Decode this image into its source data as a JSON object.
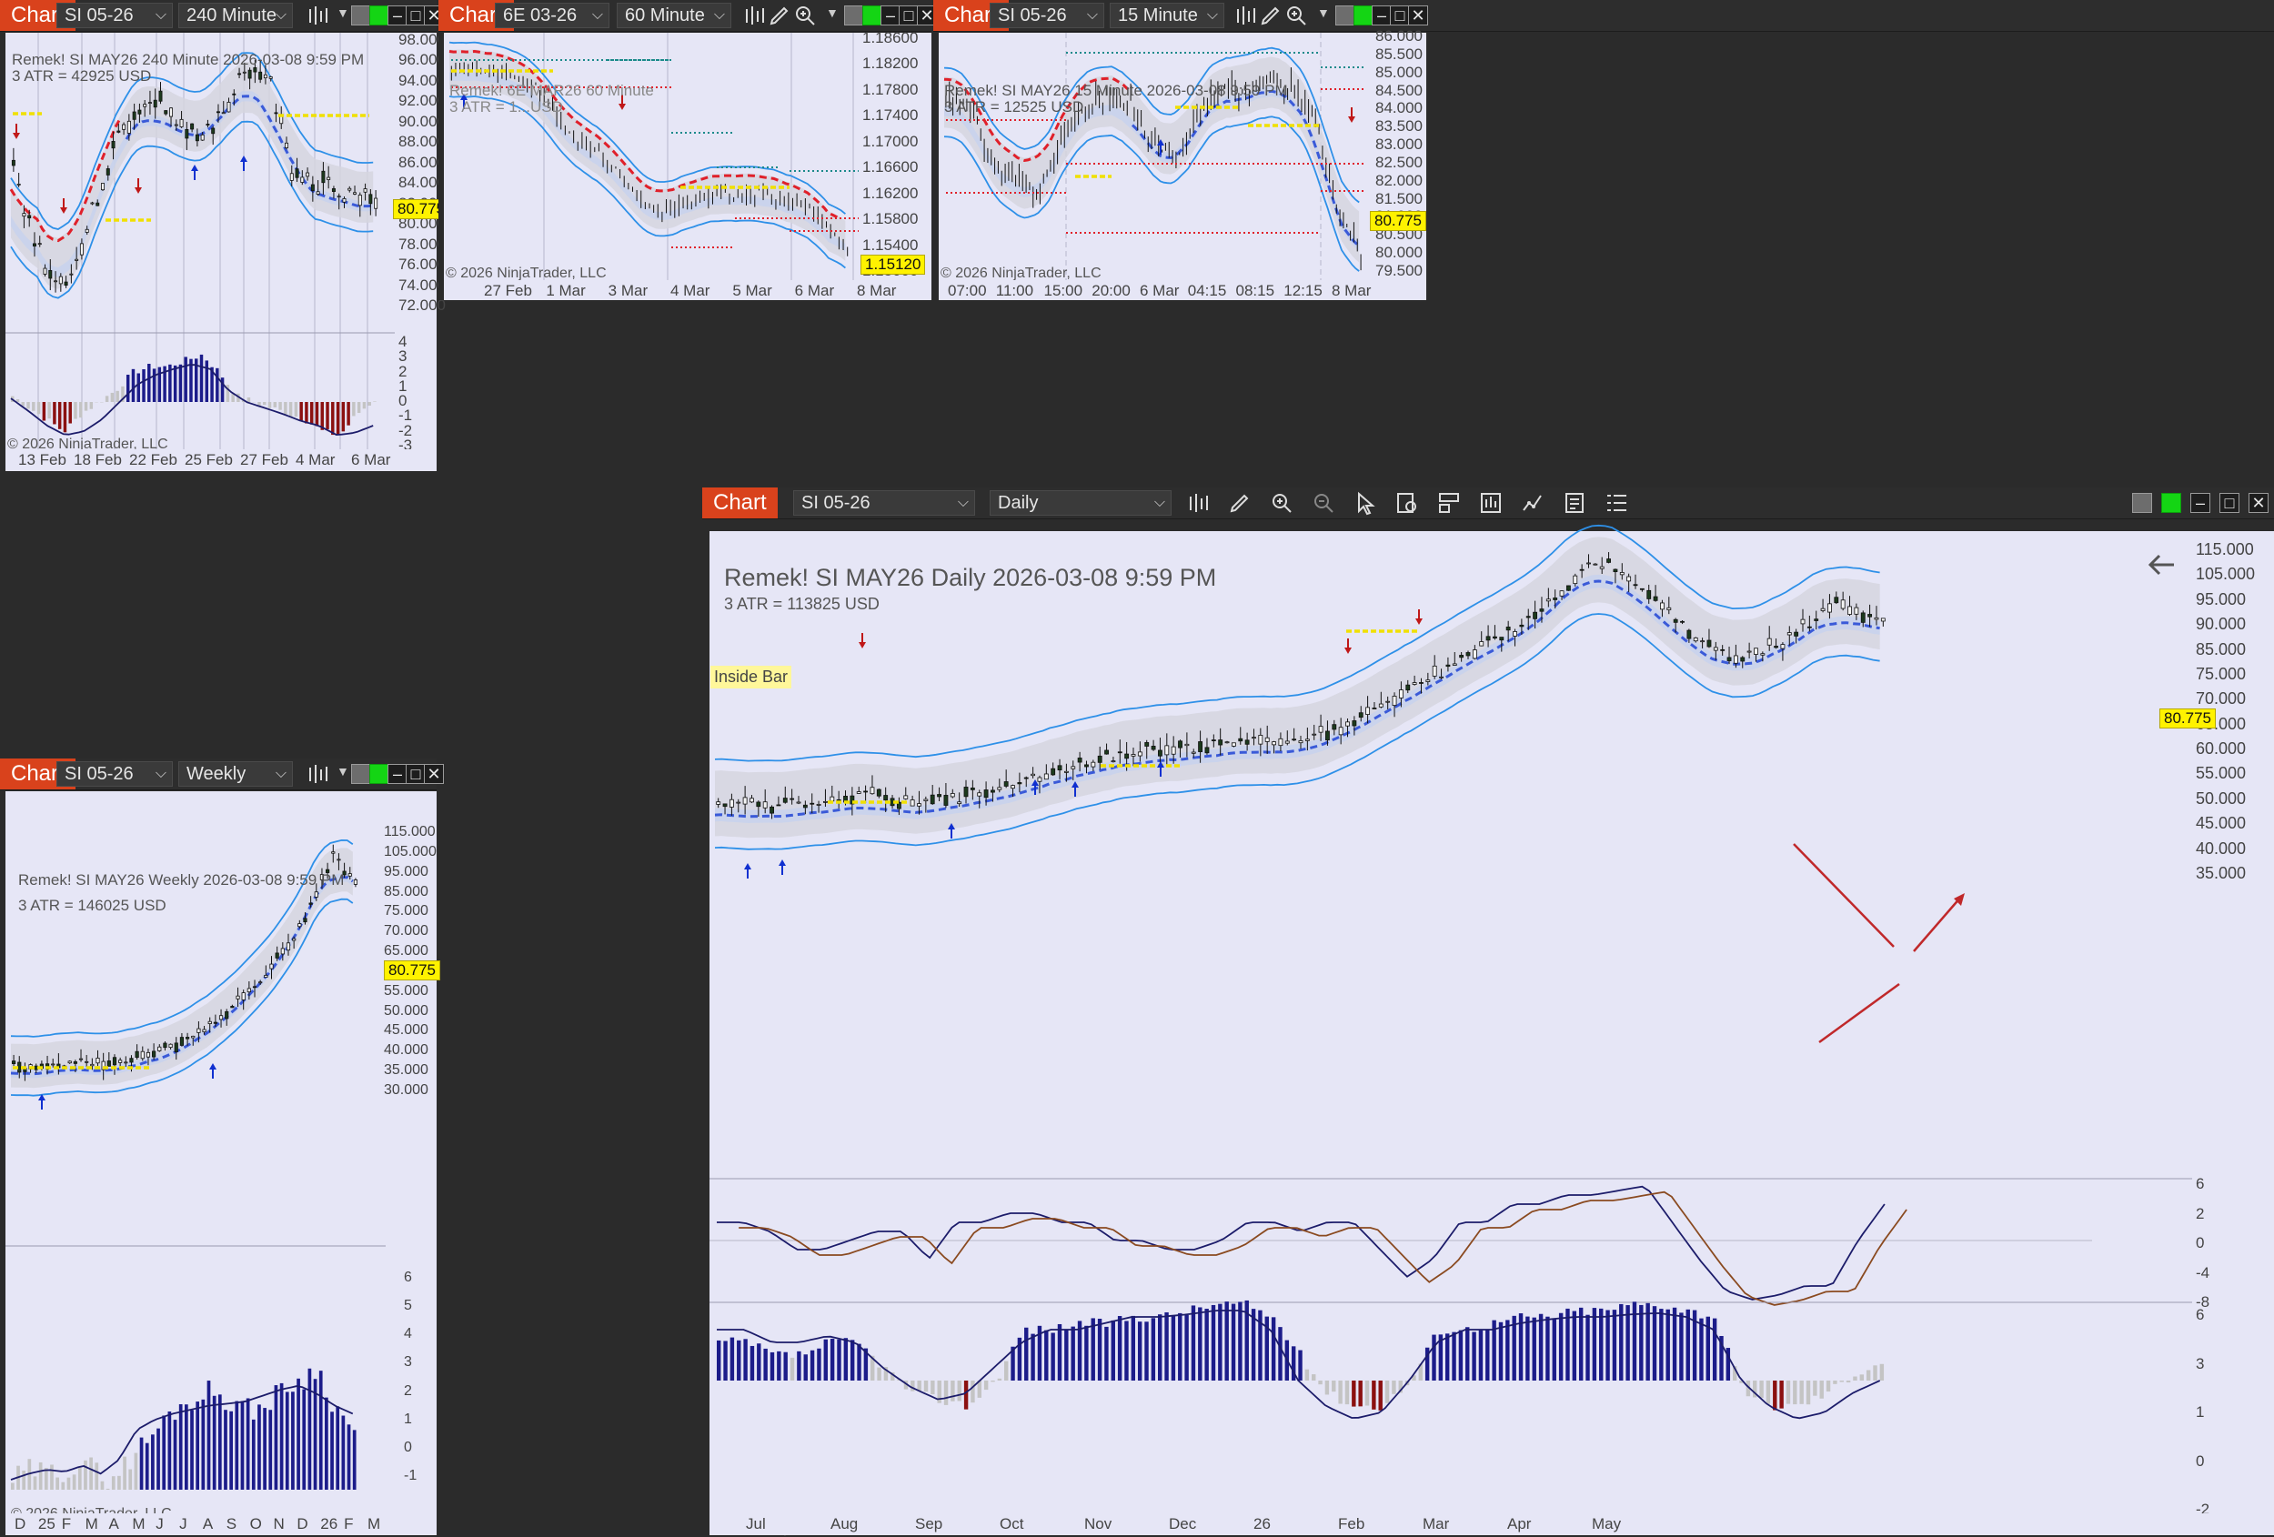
{
  "common": {
    "title": "Chart",
    "copyright": "© 2026 NinjaTrader, LLC"
  },
  "charts": {
    "c240": {
      "instrument": "SI 05-26",
      "period": "240 Minute",
      "header": "Remek!  SI MAY26  240 Minute  2026-03-08 9:59 PM",
      "atr": "3 ATR = 42925 USD",
      "last_price": "80.775",
      "price_ticks": [
        "98.000",
        "96.000",
        "94.000",
        "92.000",
        "90.000",
        "88.000",
        "86.000",
        "84.000",
        "82.000",
        "80.000",
        "78.000",
        "76.000",
        "74.000",
        "72.000"
      ],
      "osc_ticks": [
        "4",
        "3",
        "2",
        "1",
        "0",
        "-1",
        "-2",
        "-3"
      ],
      "x_labels": [
        "13 Feb",
        "18 Feb",
        "22 Feb",
        "25 Feb",
        "27 Feb",
        "4 Mar",
        "6 Mar"
      ]
    },
    "c60": {
      "instrument": "6E 03-26",
      "period": "60 Minute",
      "header": "Remek!  6E MAR26  60 Minute",
      "atr": "3 ATR = 1...USD",
      "last_price": "1.15120",
      "price_ticks": [
        "1.18600",
        "1.18200",
        "1.17800",
        "1.17400",
        "1.17000",
        "1.16600",
        "1.16200",
        "1.15800",
        "1.15400",
        "1.15000"
      ],
      "x_labels": [
        "27 Feb",
        "1 Mar",
        "3 Mar",
        "4 Mar",
        "5 Mar",
        "6 Mar",
        "8 Mar"
      ]
    },
    "c15": {
      "instrument": "SI 05-26",
      "period": "15 Minute",
      "header": "Remek!  SI MAY26  15 Minute  2026-03-08 9:59 PM",
      "atr": "3 ATR = 12525 USD",
      "last_price": "80.775",
      "price_ticks": [
        "86.000",
        "85.500",
        "85.000",
        "84.500",
        "84.000",
        "83.500",
        "83.000",
        "82.500",
        "82.000",
        "81.500",
        "81.000",
        "80.500",
        "80.000",
        "79.500"
      ],
      "x_labels": [
        "07:00",
        "11:00",
        "15:00",
        "20:00",
        "6 Mar",
        "04:15",
        "08:15",
        "12:15",
        "8 Mar"
      ]
    },
    "cw": {
      "instrument": "SI 05-26",
      "period": "Weekly",
      "header": "Remek!  SI MAY26  Weekly  2026-03-08 9:59 PM",
      "atr": "3 ATR = 146025 USD",
      "last_price": "80.775",
      "price_ticks": [
        "115.000",
        "105.000",
        "95.000",
        "85.000",
        "75.000",
        "70.000",
        "65.000",
        "60.000",
        "55.000",
        "50.000",
        "45.000",
        "40.000",
        "35.000",
        "30.000"
      ],
      "osc_ticks": [
        "6",
        "5",
        "4",
        "3",
        "2",
        "1",
        "0",
        "-1"
      ],
      "x_labels": [
        "D",
        "25",
        "F",
        "M",
        "A",
        "M",
        "J",
        "J",
        "A",
        "S",
        "O",
        "N",
        "D",
        "26",
        "F",
        "M"
      ]
    },
    "cd": {
      "instrument": "SI 05-26",
      "period": "Daily",
      "header": "Remek!  SI MAY26  Daily  2026-03-08 9:59 PM",
      "atr": "3 ATR = 113825 USD",
      "inside_bar": "Inside Bar",
      "last_price": "80.775",
      "price_ticks": [
        "115.000",
        "105.000",
        "95.000",
        "90.000",
        "85.000",
        "75.000",
        "70.000",
        "65.000",
        "60.000",
        "55.000",
        "50.000",
        "45.000",
        "40.000",
        "35.000"
      ],
      "osc1_ticks": [
        "6",
        "2",
        "0",
        "-4",
        "-8"
      ],
      "osc2_ticks": [
        "6",
        "3",
        "1",
        "0",
        "-2"
      ],
      "x_labels": [
        "Jul",
        "Aug",
        "Sep",
        "Oct",
        "Nov",
        "Dec",
        "26",
        "Feb",
        "Mar",
        "Apr",
        "May"
      ]
    }
  },
  "colors": {
    "plot_bg": "#e6e6f6",
    "accent": "#d9421c",
    "price_highlight": "#fff200",
    "band_blue": "#2e90e8",
    "ma_red": "#e0202a",
    "ma_blue": "#3a5ad8",
    "volume_bar": "#1c1c8a",
    "down_bar": "#8b1010"
  },
  "icons": [
    "bar-type-icon",
    "pencil-icon",
    "zoom-in-icon",
    "zoom-out-icon",
    "cursor-icon",
    "properties-icon",
    "data-box-icon",
    "indicators-icon",
    "strategies-icon",
    "templates-icon",
    "list-icon",
    "back-arrow-icon"
  ]
}
